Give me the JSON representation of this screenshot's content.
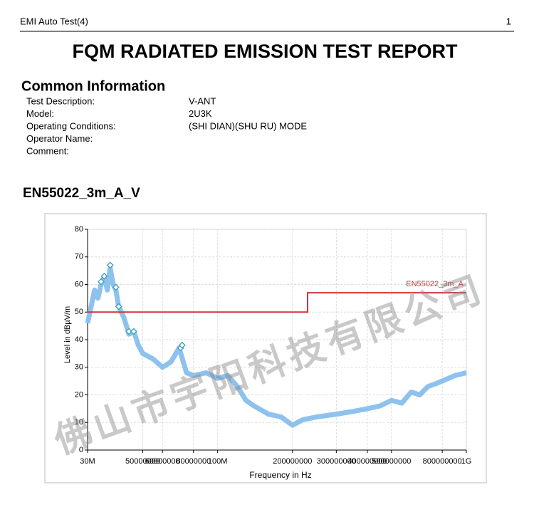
{
  "header": {
    "title": "EMI Auto Test(4)",
    "page": "1"
  },
  "title": "FQM RADIATED EMISSION TEST REPORT",
  "common_information": {
    "heading": "Common Information",
    "rows": [
      [
        "Test Description:",
        "V-ANT"
      ],
      [
        "Model:",
        "2U3K"
      ],
      [
        "Operating Conditions:",
        "(SHI DIAN)(SHU RU) MODE"
      ],
      [
        "Operator Name:"
      ],
      [
        "Comment:"
      ]
    ]
  },
  "watermark": "佛山市宇阳科技有限公司",
  "chart_data": {
    "type": "line",
    "title": "EN55022_3m_A_V",
    "x_label": "Frequency in Hz",
    "y_label": "Level in dBµV/m",
    "log_x": true,
    "grid": true,
    "xlim": [
      30000000,
      1000000000
    ],
    "xticks": [
      {
        "value": 30000000,
        "label": "30M"
      },
      50000000,
      60000000,
      80000000,
      {
        "value": 100000000,
        "label": "100M"
      },
      200000000,
      300000000,
      400000000,
      500000000,
      800000000,
      {
        "value": 1000000000,
        "label": "1G"
      }
    ],
    "ylim": [
      0,
      80
    ],
    "yticks": [
      0,
      10,
      20,
      30,
      40,
      50,
      60,
      70,
      80
    ],
    "series": [
      {
        "name": "EN55022_3m_A",
        "color": "#d0343a",
        "x": [
          30000000,
          230000000,
          230000000,
          1000000000
        ],
        "values": [
          50,
          50,
          57,
          57
        ]
      }
    ],
    "trace": {
      "color": "#8ec2ee",
      "x": [
        30000000,
        31000000,
        32000000,
        33000000,
        34000000,
        35000000,
        36000000,
        37000000,
        38000000,
        39000000,
        40000000,
        42000000,
        44000000,
        46000000,
        48000000,
        50000000,
        55000000,
        60000000,
        65000000,
        70000000,
        75000000,
        80000000,
        90000000,
        100000000,
        110000000,
        120000000,
        130000000,
        140000000,
        160000000,
        180000000,
        200000000,
        220000000,
        250000000,
        300000000,
        350000000,
        400000000,
        450000000,
        500000000,
        550000000,
        600000000,
        650000000,
        700000000,
        750000000,
        800000000,
        900000000,
        1000000000
      ],
      "values": [
        46,
        52,
        58,
        55,
        60,
        63,
        58,
        66,
        60,
        58,
        52,
        48,
        42,
        43,
        38,
        35,
        33,
        30,
        32,
        37,
        28,
        27,
        28,
        26,
        27,
        23,
        18,
        16,
        13,
        12,
        9,
        11,
        12,
        13,
        14,
        15,
        16,
        18,
        17,
        21,
        20,
        23,
        24,
        25,
        27,
        28
      ]
    },
    "peaks": {
      "color": "#3aa0b8",
      "x": [
        34000000,
        35000000,
        37000000,
        39000000,
        40000000,
        44000000,
        46000000,
        71000000,
        72000000
      ],
      "values": [
        61,
        63,
        67,
        59,
        52,
        43,
        43,
        37,
        38
      ]
    }
  }
}
